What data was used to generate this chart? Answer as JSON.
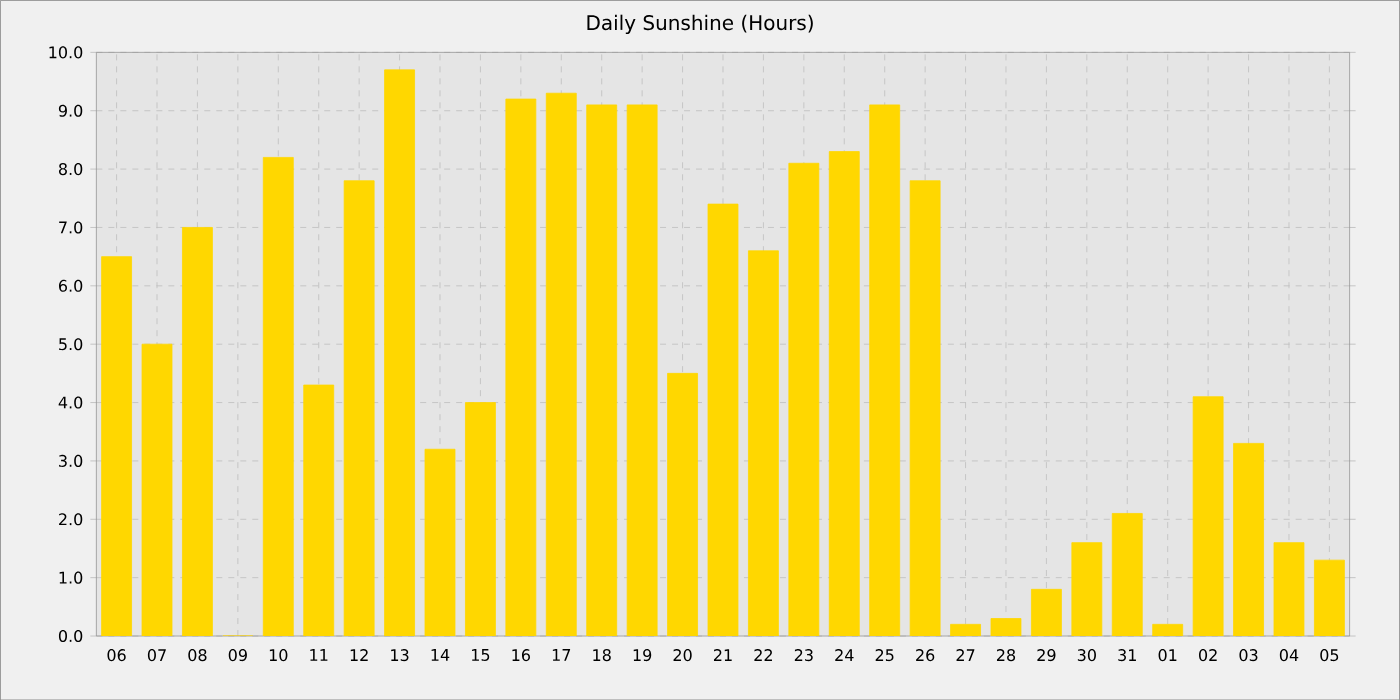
{
  "chart_data": {
    "type": "bar",
    "title": "Daily Sunshine (Hours)",
    "categories": [
      "06",
      "07",
      "08",
      "09",
      "10",
      "11",
      "12",
      "13",
      "14",
      "15",
      "16",
      "17",
      "18",
      "19",
      "20",
      "21",
      "22",
      "23",
      "24",
      "25",
      "26",
      "27",
      "28",
      "29",
      "30",
      "31",
      "01",
      "02",
      "03",
      "04",
      "05"
    ],
    "values": [
      6.5,
      5.0,
      7.0,
      0,
      8.2,
      4.3,
      7.8,
      9.7,
      3.2,
      4.0,
      9.2,
      9.3,
      9.1,
      9.1,
      4.5,
      7.4,
      6.6,
      8.1,
      8.3,
      9.1,
      7.8,
      0.2,
      0.3,
      0.8,
      1.6,
      2.1,
      0.2,
      4.1,
      3.3,
      1.6,
      1.3
    ],
    "color": "#ffd700",
    "ylim": [
      0,
      10
    ],
    "yticks": [
      {
        "value": 0,
        "label": "0.0"
      },
      {
        "value": 1,
        "label": "1.0"
      },
      {
        "value": 2,
        "label": "2.0"
      },
      {
        "value": 3,
        "label": "3.0"
      },
      {
        "value": 4,
        "label": "4.0"
      },
      {
        "value": 5,
        "label": "5.0"
      },
      {
        "value": 6,
        "label": "6.0"
      },
      {
        "value": 7,
        "label": "7.0"
      },
      {
        "value": 8,
        "label": "8.0"
      },
      {
        "value": 9,
        "label": "9.0"
      },
      {
        "value": 10,
        "label": "10.0"
      }
    ],
    "grid": true
  }
}
